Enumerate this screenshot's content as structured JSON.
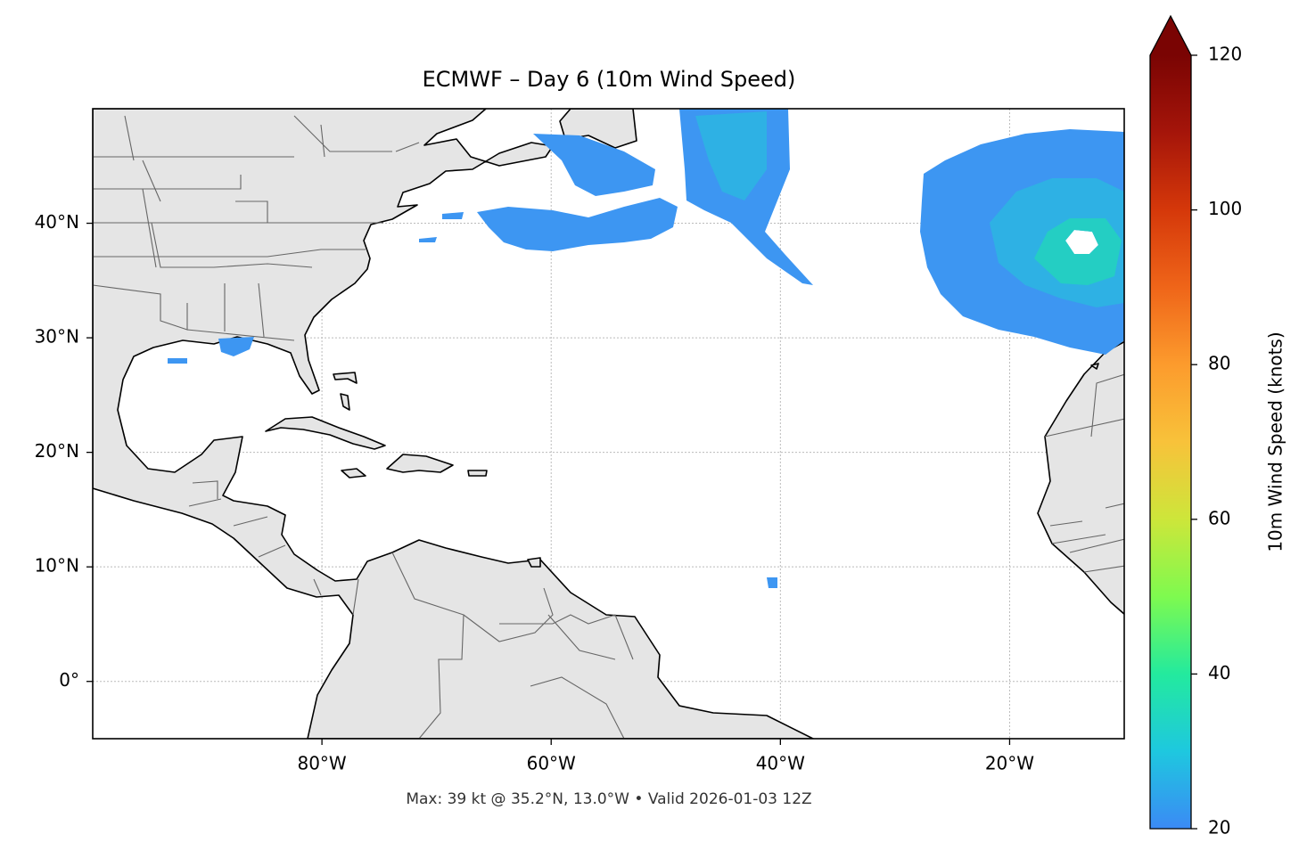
{
  "chart_data": {
    "type": "map",
    "title": "ECMWF – Day 6 (10m Wind Speed)",
    "footer": "Max: 39 kt @ 35.2°N, 13.0°W • Valid 2026-01-03 12Z",
    "xlim": [
      -100,
      -10
    ],
    "ylim": [
      -5,
      50
    ],
    "xticks": [
      {
        "value": -80,
        "label": "80°W"
      },
      {
        "value": -60,
        "label": "60°W"
      },
      {
        "value": -40,
        "label": "40°W"
      },
      {
        "value": -20,
        "label": "20°W"
      }
    ],
    "yticks": [
      {
        "value": 0,
        "label": "0°"
      },
      {
        "value": 10,
        "label": "10°N"
      },
      {
        "value": 20,
        "label": "20°N"
      },
      {
        "value": 30,
        "label": "30°N"
      },
      {
        "value": 40,
        "label": "40°N"
      }
    ],
    "grid": true,
    "colorbar": {
      "label": "10m Wind Speed (knots)",
      "lim": [
        20,
        120
      ],
      "ticks": [
        20,
        40,
        60,
        80,
        100,
        120
      ],
      "extend": "max",
      "colors": [
        "#3b8af5",
        "#1ec8df",
        "#23ea9e",
        "#7efa4f",
        "#cde63a",
        "#f8c23a",
        "#fc9b2d",
        "#ef6519",
        "#d5380a",
        "#a5150a",
        "#7a0403"
      ]
    }
  }
}
